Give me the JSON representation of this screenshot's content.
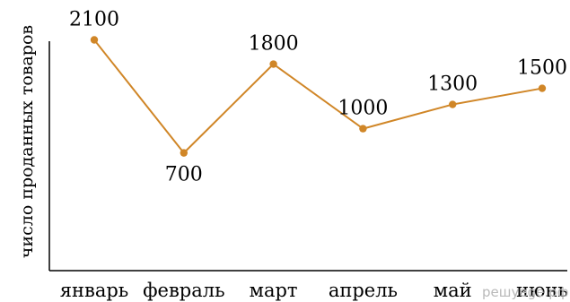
{
  "chart_data": {
    "type": "line",
    "title": "",
    "xlabel": "",
    "ylabel": "число проданных товаров",
    "categories": [
      "январь",
      "февраль",
      "март",
      "апрель",
      "май",
      "июнь"
    ],
    "series": [
      {
        "values": [
          2100,
          700,
          1800,
          1000,
          1300,
          1500
        ],
        "color": "#d08627"
      }
    ],
    "data_labels": [
      "2100",
      "700",
      "1800",
      "1000",
      "1300",
      "1500"
    ],
    "label_positions": [
      "above",
      "below",
      "above",
      "above",
      "above",
      "above"
    ],
    "ylim": [
      0,
      2500
    ],
    "grid": false,
    "legend": "none",
    "y_ticks_shown": false
  },
  "watermark": "решуege.рф"
}
